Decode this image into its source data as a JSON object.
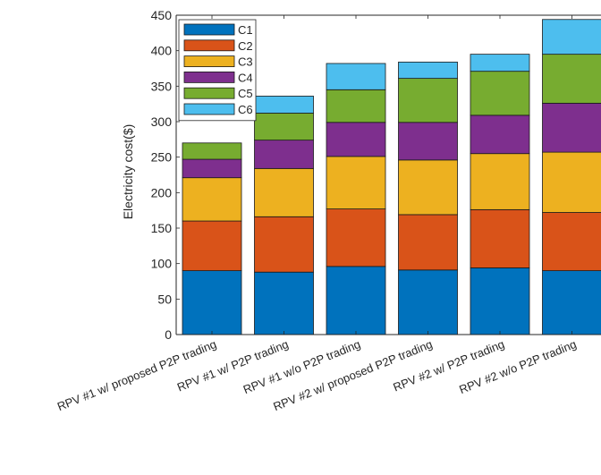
{
  "chart_data": {
    "type": "bar",
    "stacked": true,
    "title": "",
    "xlabel": "",
    "ylabel": "Electricity cost($)",
    "ylim": [
      0,
      450
    ],
    "yticks": [
      0,
      50,
      100,
      150,
      200,
      250,
      300,
      350,
      400,
      450
    ],
    "grid": false,
    "legend_position": "top-left",
    "categories": [
      "RPV #1 w/ proposed P2P trading",
      "RPV #1 w/ P2P trading",
      "RPV #1 w/o P2P trading",
      "RPV #2 w/ proposed P2P trading",
      "RPV #2 w/ P2P trading",
      "RPV #2 w/o P2P trading"
    ],
    "series": [
      {
        "name": "C1",
        "color": "#0072BD",
        "values": [
          90,
          88,
          96,
          91,
          94,
          90
        ]
      },
      {
        "name": "C2",
        "color": "#D95319",
        "values": [
          70,
          78,
          81,
          78,
          82,
          82
        ]
      },
      {
        "name": "C3",
        "color": "#EDB120",
        "values": [
          61,
          68,
          74,
          77,
          79,
          85
        ]
      },
      {
        "name": "C4",
        "color": "#7E2F8E",
        "values": [
          26,
          40,
          48,
          53,
          54,
          69
        ]
      },
      {
        "name": "C5",
        "color": "#77AC30",
        "values": [
          23,
          38,
          46,
          62,
          62,
          69
        ]
      },
      {
        "name": "C6",
        "color": "#4DBEEE",
        "values": [
          0,
          24,
          37,
          23,
          24,
          49
        ]
      }
    ]
  }
}
